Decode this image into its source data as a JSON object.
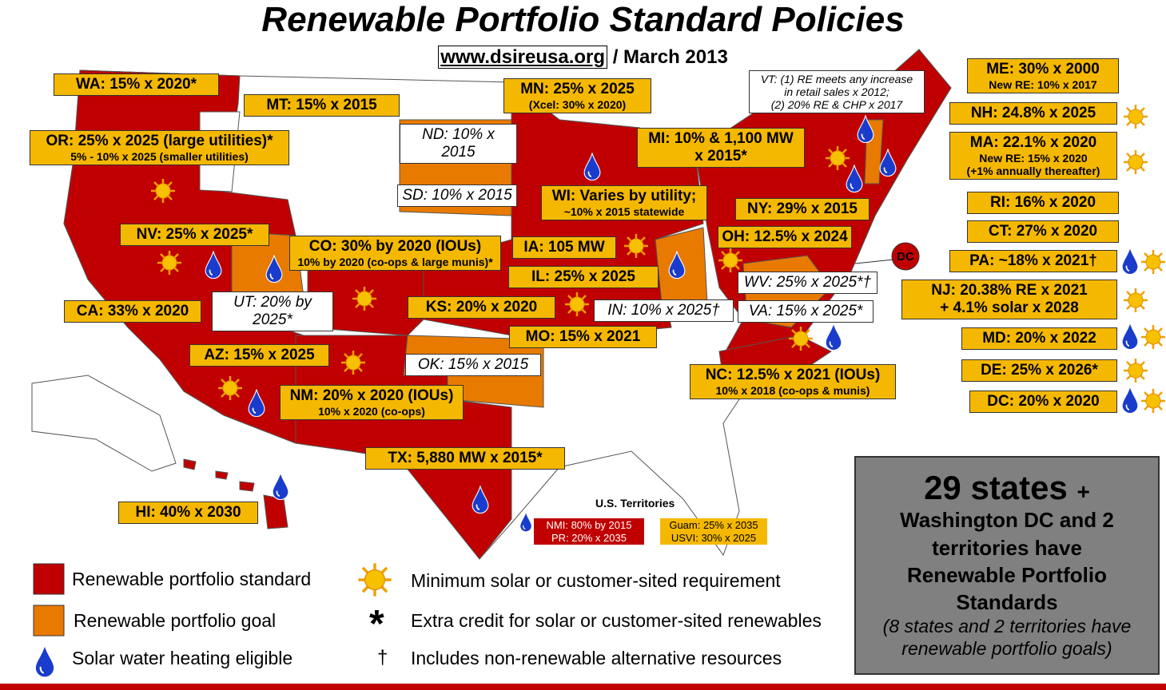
{
  "header": {
    "title": "Renewable Portfolio Standard Policies",
    "website": "www.dsireusa.org",
    "date": "/ March 2013"
  },
  "standards": [
    {
      "lines": [
        "WA: 15% x 2020*"
      ]
    },
    {
      "lines": [
        "MT: 15% x 2015"
      ]
    },
    {
      "lines": [
        "OR: 25% x 2025 (large utilities)*",
        "5% - 10% x 2025 (smaller utilities)"
      ]
    },
    {
      "lines": [
        "MN: 25% x 2025",
        "(Xcel: 30% x 2020)"
      ]
    },
    {
      "lines": [
        "MI: 10% & 1,100 MW",
        "x 2015*"
      ]
    },
    {
      "lines": [
        "WI: Varies by utility;",
        "~10% x 2015 statewide"
      ]
    },
    {
      "lines": [
        "NV: 25% x 2025*"
      ]
    },
    {
      "lines": [
        "CO: 30% by 2020 (IOUs)",
        "10% by 2020 (co-ops & large munis)*"
      ]
    },
    {
      "lines": [
        "IA: 105 MW"
      ]
    },
    {
      "lines": [
        "IL: 25% x 2025"
      ]
    },
    {
      "lines": [
        "CA: 33% x 2020"
      ]
    },
    {
      "lines": [
        "KS: 20% x 2020"
      ]
    },
    {
      "lines": [
        "MO: 15% x 2021"
      ]
    },
    {
      "lines": [
        "AZ: 15% x 2025"
      ]
    },
    {
      "lines": [
        "NM: 20% x 2020 (IOUs)",
        "10% x 2020 (co-ops)"
      ]
    },
    {
      "lines": [
        "TX: 5,880 MW x 2015*"
      ]
    },
    {
      "lines": [
        "HI: 40% x 2030"
      ]
    },
    {
      "lines": [
        "NY: 29% x 2015"
      ]
    },
    {
      "lines": [
        "OH: 12.5% x 2024"
      ]
    },
    {
      "lines": [
        "NC: 12.5% x 2021 (IOUs)",
        "10% x 2018 (co-ops & munis)"
      ]
    },
    {
      "lines": [
        "ME: 30% x 2000",
        "New RE: 10% x 2017"
      ]
    },
    {
      "lines": [
        "NH: 24.8% x 2025"
      ]
    },
    {
      "lines": [
        "MA: 22.1% x 2020",
        "New RE: 15% x 2020",
        "(+1% annually thereafter)"
      ]
    },
    {
      "lines": [
        "RI: 16% x 2020"
      ]
    },
    {
      "lines": [
        "CT: 27% x 2020"
      ]
    },
    {
      "lines": [
        "PA: ~18% x 2021†"
      ]
    },
    {
      "lines": [
        "NJ: 20.38% RE x 2021",
        "+ 4.1% solar x 2028"
      ]
    },
    {
      "lines": [
        "MD: 20% x 2022"
      ]
    },
    {
      "lines": [
        "DE: 25% x 2026*"
      ]
    },
    {
      "lines": [
        "DC: 20% x 2020"
      ]
    }
  ],
  "goals": [
    {
      "lines": [
        "ND: 10% x 2015"
      ]
    },
    {
      "lines": [
        "SD: 10% x 2015"
      ]
    },
    {
      "lines": [
        "UT: 20% by 2025*"
      ]
    },
    {
      "lines": [
        "IN: 10% x 2025†"
      ]
    },
    {
      "lines": [
        "OK: 15% x 2015"
      ]
    },
    {
      "lines": [
        "WV: 25% x 2025*†"
      ]
    },
    {
      "lines": [
        "VA: 15% x 2025*"
      ]
    },
    {
      "lines": [
        "VT: (1) RE meets any increase",
        "in retail sales x 2012;",
        "(2) 20% RE & CHP x 2017"
      ]
    }
  ],
  "dc_marker": "DC",
  "territories": {
    "title": "U.S. Territories",
    "standards": [
      "NMI: 80% by 2015",
      "PR: 20% x 2035"
    ],
    "goals": [
      "Guam: 25% x 2035",
      "USVI: 30% x 2025"
    ]
  },
  "legend": [
    {
      "label": "Renewable portfolio standard"
    },
    {
      "label": "Renewable portfolio goal"
    },
    {
      "label": "Solar water heating eligible"
    },
    {
      "label": "Minimum solar or customer-sited requirement"
    },
    {
      "symbol": "*",
      "label": "Extra credit for solar or customer-sited renewables"
    },
    {
      "symbol": "†",
      "label": "Includes non-renewable alternative resources"
    }
  ],
  "summary": {
    "count": "29 states",
    "plus": "+",
    "lines": [
      "Washington DC and 2",
      "territories have",
      "Renewable Portfolio",
      "Standards"
    ],
    "note": [
      "(8 states and 2 territories have",
      "renewable portfolio goals)"
    ]
  }
}
